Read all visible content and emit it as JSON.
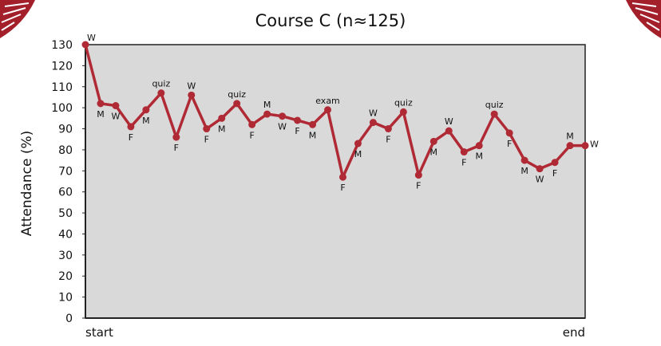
{
  "colors": {
    "line": "#b02a35",
    "plot_bg": "#d9d9d9",
    "axis": "#222222",
    "logo": "#a3202b"
  },
  "chart_data": {
    "type": "line",
    "title": "Course C (n≈125)",
    "xlabel": "",
    "ylabel": "Attendance (%)",
    "ylim": [
      0,
      130
    ],
    "yticks": [
      0,
      10,
      20,
      30,
      40,
      50,
      60,
      70,
      80,
      90,
      100,
      110,
      120,
      130
    ],
    "xtick_labels": {
      "start": "start",
      "end": "end"
    },
    "grid": false,
    "series": [
      {
        "points": [
          {
            "v": 130,
            "label": "W"
          },
          {
            "v": 102,
            "label": "M"
          },
          {
            "v": 101,
            "label": "W"
          },
          {
            "v": 91,
            "label": "F"
          },
          {
            "v": 99,
            "label": "M"
          },
          {
            "v": 107,
            "label": "quiz"
          },
          {
            "v": 86,
            "label": "F"
          },
          {
            "v": 106,
            "label": "W"
          },
          {
            "v": 90,
            "label": "F"
          },
          {
            "v": 95,
            "label": "M"
          },
          {
            "v": 102,
            "label": "quiz"
          },
          {
            "v": 92,
            "label": "F"
          },
          {
            "v": 97,
            "label": "M"
          },
          {
            "v": 96,
            "label": "W"
          },
          {
            "v": 94,
            "label": "F"
          },
          {
            "v": 92,
            "label": "M"
          },
          {
            "v": 99,
            "label": "exam"
          },
          {
            "v": 67,
            "label": "F"
          },
          {
            "v": 83,
            "label": "M"
          },
          {
            "v": 93,
            "label": "W"
          },
          {
            "v": 90,
            "label": "F"
          },
          {
            "v": 98,
            "label": "quiz"
          },
          {
            "v": 68,
            "label": "F"
          },
          {
            "v": 84,
            "label": "M"
          },
          {
            "v": 89,
            "label": "W"
          },
          {
            "v": 79,
            "label": "F"
          },
          {
            "v": 82,
            "label": "M"
          },
          {
            "v": 97,
            "label": "quiz"
          },
          {
            "v": 88,
            "label": "F"
          },
          {
            "v": 75,
            "label": "M"
          },
          {
            "v": 71,
            "label": "W"
          },
          {
            "v": 74,
            "label": "F"
          },
          {
            "v": 82,
            "label": "M"
          },
          {
            "v": 82,
            "label": "W"
          }
        ]
      }
    ]
  }
}
